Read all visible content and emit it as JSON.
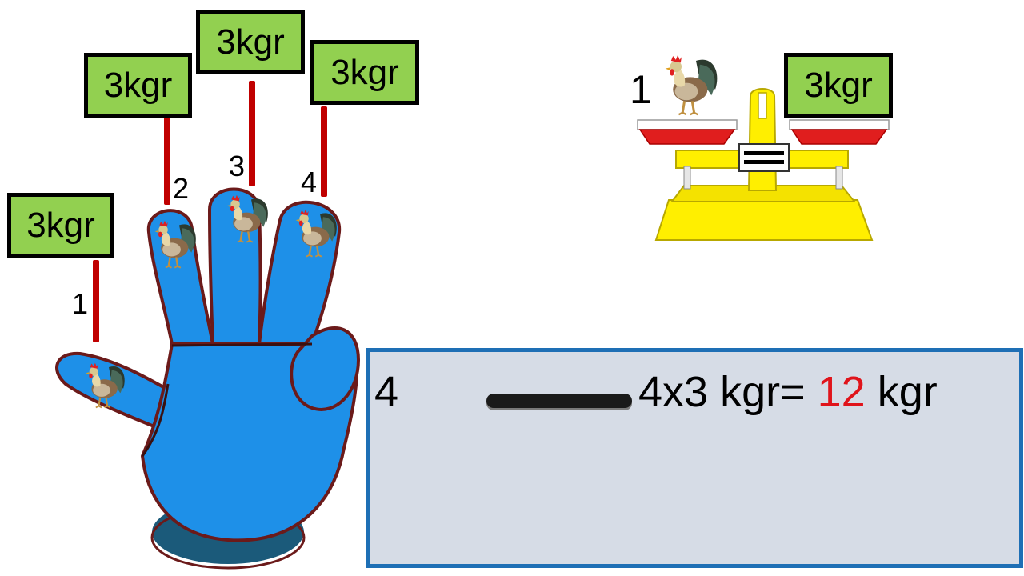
{
  "labels": {
    "thumb": "3kgr",
    "index": "3kgr",
    "middle": "3kgr",
    "ring": "3kgr",
    "scale": "3kgr"
  },
  "finger_numbers": [
    "1",
    "2",
    "3",
    "4"
  ],
  "scale": {
    "count": "1"
  },
  "equation": {
    "count": "4",
    "expression": "4x3 kgr=",
    "result": "12",
    "unit": "kgr"
  },
  "colors": {
    "label_fill": "#92d050",
    "stick": "#c00000",
    "hand": "#1e90e8",
    "scale_body": "#ffef00",
    "scale_pan": "#e01e1e",
    "panel_border": "#1e6fb5",
    "panel_fill": "#d6dce6",
    "result": "#e0141b"
  },
  "icons": [
    "hand-icon",
    "rooster-icon",
    "balance-scale-icon"
  ]
}
